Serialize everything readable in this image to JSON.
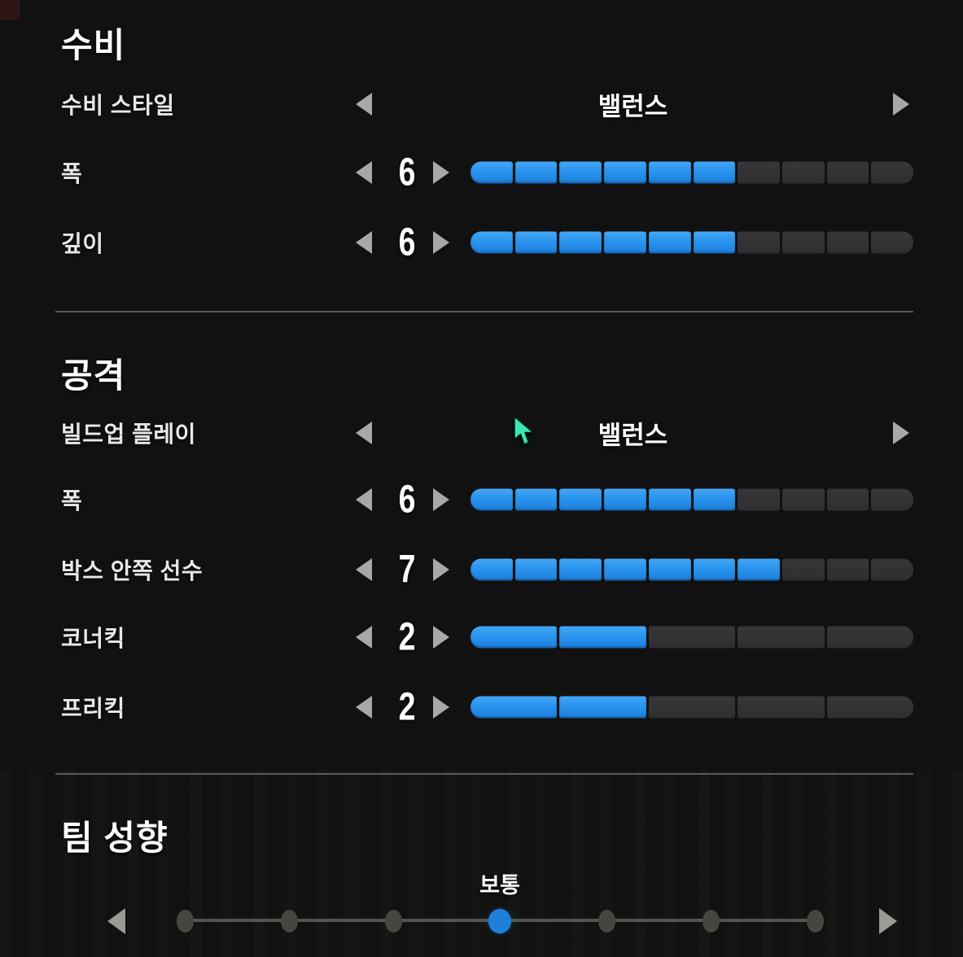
{
  "colors": {
    "accent_blue": "#2b96ef",
    "dot_blue": "#1f80da",
    "segment_empty": "#323234",
    "cursor_teal": "#3be8b2",
    "background_top": "#151515",
    "background_bottom": "#2a352b"
  },
  "sections": {
    "defense": {
      "title": "수비",
      "style_row": {
        "label": "수비 스타일",
        "value": "밸런스"
      },
      "rows": [
        {
          "label": "폭",
          "value": "6",
          "max": 10
        },
        {
          "label": "깊이",
          "value": "6",
          "max": 10
        }
      ]
    },
    "attack": {
      "title": "공격",
      "style_row": {
        "label": "빌드업 플레이",
        "value": "밸런스"
      },
      "rows": [
        {
          "label": "폭",
          "value": "6",
          "max": 10
        },
        {
          "label": "박스 안쪽 선수",
          "value": "7",
          "max": 10
        },
        {
          "label": "코너킥",
          "value": "2",
          "max": 5
        },
        {
          "label": "프리킥",
          "value": "2",
          "max": 5
        }
      ]
    },
    "mentality": {
      "title": "팀 성향",
      "value_label": "보통",
      "num_steps": 7,
      "selected_index": 3
    }
  }
}
